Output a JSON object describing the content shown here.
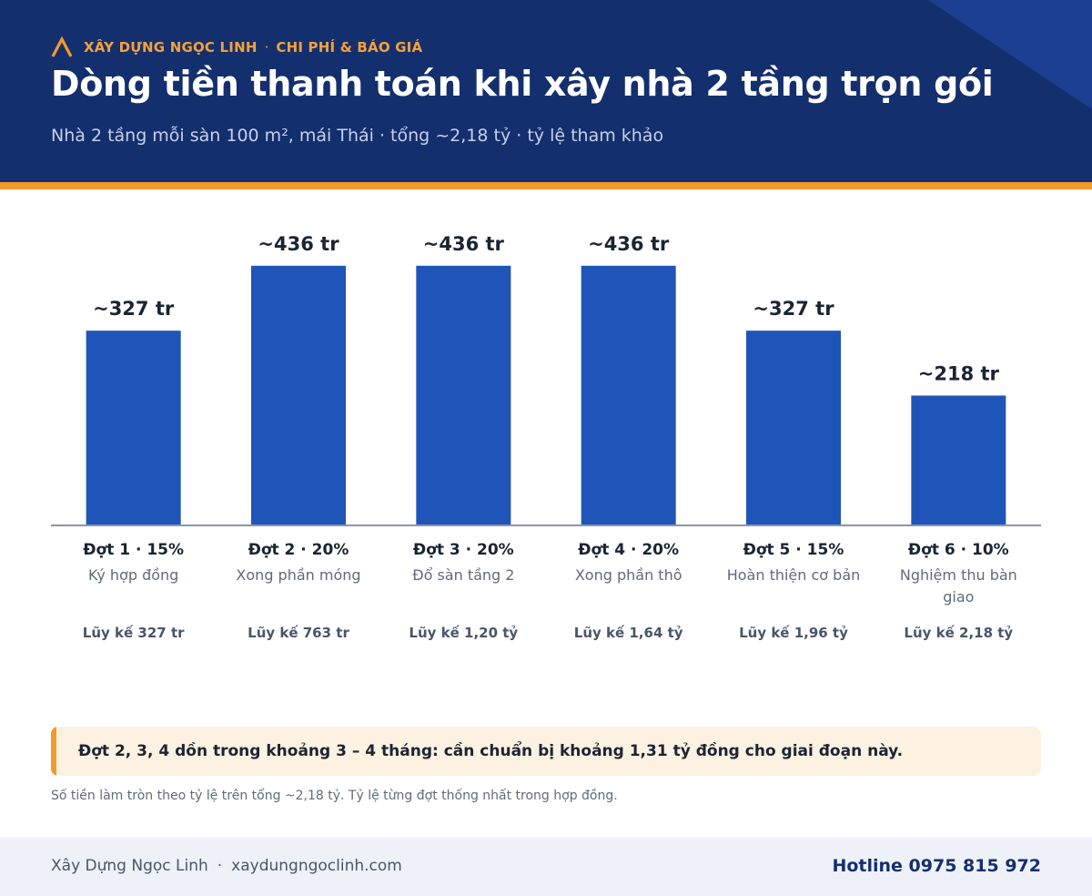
{
  "header": {
    "brand": "XÂY DỰNG NGỌC LINH",
    "separator": "·",
    "section": "CHI PHÍ & BÁO GIÁ",
    "title": "Dòng tiền thanh toán khi xây nhà 2 tầng trọn gói",
    "subtitle": "Nhà 2 tầng mỗi sàn 100 m², mái Thái · tổng ~2,18 tỷ · tỷ lệ tham khảo"
  },
  "colors": {
    "header_bg": "#142f6e",
    "accent": "#f39a2b",
    "bar": "#1f55b8",
    "callout_bg": "#fdf1e1",
    "footer_bg": "#eef1f7"
  },
  "chart_data": {
    "type": "bar",
    "unit": "tr",
    "ylim": [
      0,
      500
    ],
    "grid": false,
    "categories": [
      "Đợt 1 · 15%",
      "Đợt 2 · 20%",
      "Đợt 3 · 20%",
      "Đợt 4 · 20%",
      "Đợt 5 · 15%",
      "Đợt 6 · 10%"
    ],
    "values": [
      327,
      436,
      436,
      436,
      327,
      218
    ],
    "value_labels": [
      "~327 tr",
      "~436 tr",
      "~436 tr",
      "~436 tr",
      "~327 tr",
      "~218 tr"
    ],
    "stages": [
      "Ký hợp đồng",
      "Xong phần móng",
      "Đổ sàn tầng 2",
      "Xong phần thô",
      "Hoàn thiện cơ bản",
      "Nghiệm thu bàn giao"
    ],
    "cumulative": [
      "Lũy kế 327 tr",
      "Lũy kế 763 tr",
      "Lũy kế 1,20 tỷ",
      "Lũy kế 1,64 tỷ",
      "Lũy kế 1,96 tỷ",
      "Lũy kế 2,18 tỷ"
    ]
  },
  "callout": {
    "text": "Đợt 2, 3, 4 dồn trong khoảng 3 – 4 tháng: cần chuẩn bị khoảng 1,31 tỷ đồng cho giai đoạn này."
  },
  "footnote": "Số tiền làm tròn theo tỷ lệ trên tổng ~2,18 tỷ. Tỷ lệ từng đợt thống nhất trong hợp đồng.",
  "footer": {
    "company": "Xây Dựng Ngọc Linh",
    "separator": "·",
    "website": "xaydungngoclinh.com",
    "hotline": "Hotline 0975 815 972"
  }
}
